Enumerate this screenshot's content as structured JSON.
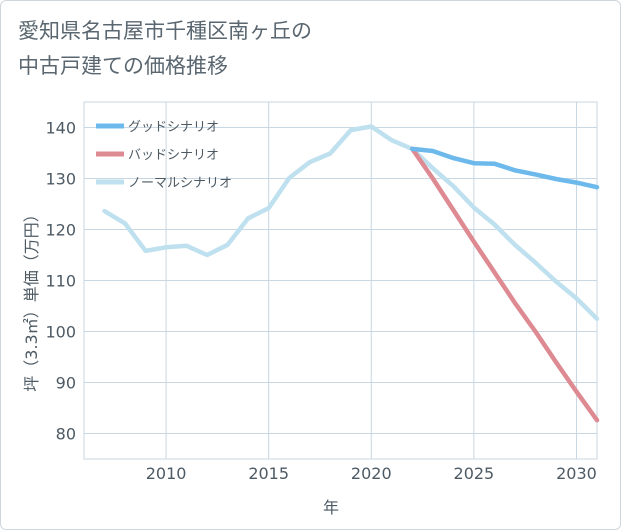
{
  "title_lines": [
    "愛知県名古屋市千種区南ヶ丘の",
    "中古戸建ての価格推移"
  ],
  "chart_data": {
    "type": "line",
    "xlabel": "年",
    "ylabel": "坪（3.3㎡）単価（万円）",
    "xlim": [
      2006,
      2031
    ],
    "ylim": [
      75,
      145
    ],
    "x_ticks": [
      2010,
      2015,
      2020,
      2025,
      2030
    ],
    "y_ticks": [
      80,
      90,
      100,
      110,
      120,
      130,
      140
    ],
    "grid": true,
    "legend_position": "top-left",
    "series": [
      {
        "name": "グッドシナリオ",
        "color": "#6db9ec",
        "x": [
          2022,
          2023,
          2024,
          2025,
          2026,
          2027,
          2028,
          2029,
          2030,
          2031
        ],
        "y": [
          135.8,
          135.4,
          134.0,
          133.0,
          132.9,
          131.6,
          130.8,
          129.9,
          129.2,
          128.3
        ]
      },
      {
        "name": "バッドシナリオ",
        "color": "#dd8a92",
        "x": [
          2022,
          2023,
          2024,
          2025,
          2026,
          2027,
          2028,
          2029,
          2030,
          2031
        ],
        "y": [
          135.8,
          130.0,
          123.8,
          117.6,
          111.6,
          105.6,
          100.0,
          94.0,
          88.2,
          82.6
        ]
      },
      {
        "name": "ノーマルシナリオ",
        "color": "#bfe0ee",
        "x": [
          2007,
          2008,
          2009,
          2010,
          2011,
          2012,
          2013,
          2014,
          2015,
          2016,
          2017,
          2018,
          2019,
          2020,
          2021,
          2022,
          2023,
          2024,
          2025,
          2026,
          2027,
          2028,
          2029,
          2030,
          2031
        ],
        "y": [
          123.6,
          121.2,
          115.8,
          116.5,
          116.8,
          115.0,
          117.0,
          122.2,
          124.2,
          130.1,
          133.2,
          134.9,
          139.5,
          140.2,
          137.5,
          135.8,
          132.0,
          128.5,
          124.3,
          121.0,
          117.0,
          113.5,
          109.8,
          106.5,
          102.5
        ]
      }
    ]
  }
}
